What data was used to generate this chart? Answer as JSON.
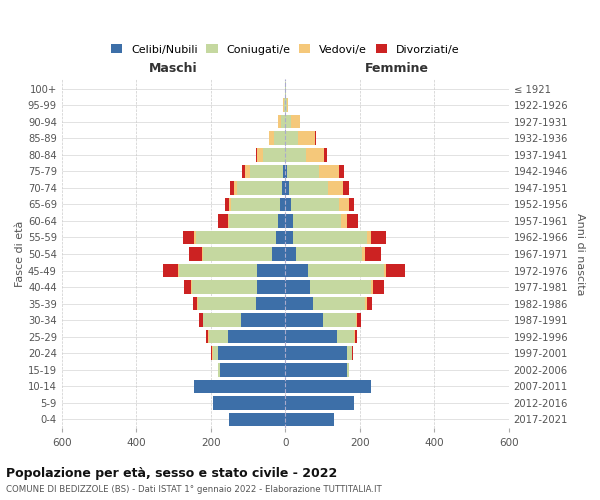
{
  "age_groups": [
    "0-4",
    "5-9",
    "10-14",
    "15-19",
    "20-24",
    "25-29",
    "30-34",
    "35-39",
    "40-44",
    "45-49",
    "50-54",
    "55-59",
    "60-64",
    "65-69",
    "70-74",
    "75-79",
    "80-84",
    "85-89",
    "90-94",
    "95-99",
    "100+"
  ],
  "birth_years": [
    "2017-2021",
    "2012-2016",
    "2007-2011",
    "2002-2006",
    "1997-2001",
    "1992-1996",
    "1987-1991",
    "1982-1986",
    "1977-1981",
    "1972-1976",
    "1967-1971",
    "1962-1966",
    "1957-1961",
    "1952-1956",
    "1947-1951",
    "1942-1946",
    "1937-1941",
    "1932-1936",
    "1927-1931",
    "1922-1926",
    "≤ 1921"
  ],
  "male": {
    "celibi": [
      150,
      195,
      245,
      175,
      180,
      155,
      120,
      80,
      75,
      75,
      35,
      25,
      20,
      15,
      10,
      5,
      0,
      0,
      0,
      0,
      0
    ],
    "coniugati": [
      0,
      0,
      0,
      5,
      15,
      50,
      100,
      155,
      175,
      210,
      185,
      215,
      130,
      130,
      120,
      90,
      60,
      30,
      12,
      4,
      2
    ],
    "vedovi": [
      0,
      0,
      0,
      0,
      2,
      2,
      2,
      2,
      2,
      3,
      4,
      4,
      5,
      5,
      8,
      12,
      15,
      15,
      8,
      2,
      0
    ],
    "divorziati": [
      0,
      0,
      0,
      0,
      2,
      5,
      10,
      10,
      20,
      40,
      35,
      30,
      25,
      12,
      10,
      8,
      5,
      0,
      0,
      0,
      0
    ]
  },
  "female": {
    "nubili": [
      130,
      185,
      230,
      165,
      165,
      140,
      100,
      75,
      65,
      60,
      30,
      20,
      20,
      15,
      10,
      5,
      0,
      0,
      0,
      0,
      0
    ],
    "coniugate": [
      0,
      0,
      0,
      5,
      15,
      45,
      90,
      140,
      165,
      205,
      175,
      200,
      130,
      130,
      105,
      85,
      55,
      35,
      15,
      4,
      2
    ],
    "vedove": [
      0,
      0,
      0,
      0,
      0,
      2,
      2,
      3,
      5,
      5,
      8,
      10,
      15,
      25,
      40,
      55,
      50,
      45,
      25,
      4,
      1
    ],
    "divorziate": [
      0,
      0,
      0,
      0,
      2,
      5,
      10,
      15,
      30,
      50,
      45,
      40,
      30,
      15,
      15,
      12,
      8,
      2,
      0,
      0,
      0
    ]
  },
  "colors": {
    "celibi": "#3d6fa8",
    "coniugati": "#c5d8a0",
    "vedovi": "#f5c87a",
    "divorziati": "#cc2222"
  },
  "xlim": 600,
  "title": "Popolazione per età, sesso e stato civile - 2022",
  "subtitle": "COMUNE DI BEDIZZOLE (BS) - Dati ISTAT 1° gennaio 2022 - Elaborazione TUTTITALIA.IT",
  "xlabel_left": "Maschi",
  "xlabel_right": "Femmine",
  "ylabel_left": "Fasce di età",
  "ylabel_right": "Anni di nascita",
  "legend_labels": [
    "Celibi/Nubili",
    "Coniugati/e",
    "Vedovi/e",
    "Divorziati/e"
  ]
}
